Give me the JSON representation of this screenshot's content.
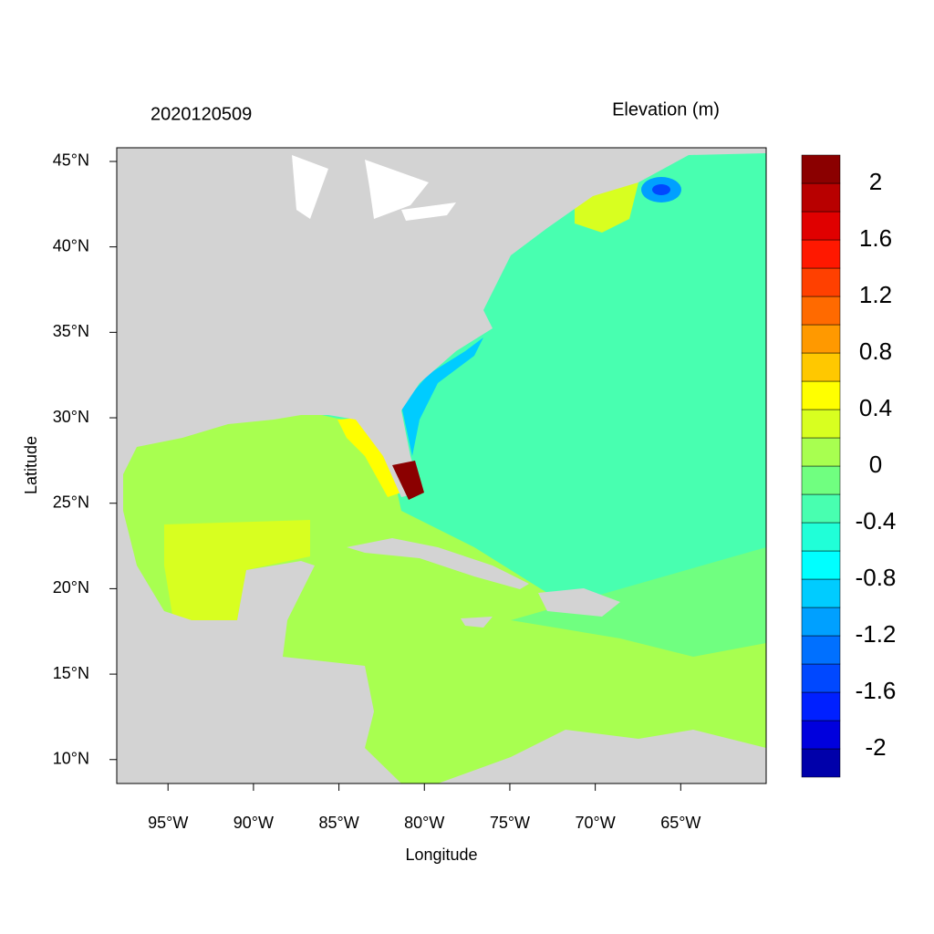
{
  "chart_data": {
    "type": "map",
    "title": "2020120509",
    "legend_title": "Elevation (m)",
    "xlabel": "Longitude",
    "ylabel": "Latitude",
    "xlim": [
      -98,
      -60
    ],
    "ylim": [
      8.6,
      45.8
    ],
    "xticks": [
      {
        "value": -95,
        "label": "95°W"
      },
      {
        "value": -90,
        "label": "90°W"
      },
      {
        "value": -85,
        "label": "85°W"
      },
      {
        "value": -80,
        "label": "80°W"
      },
      {
        "value": -75,
        "label": "75°W"
      },
      {
        "value": -70,
        "label": "70°W"
      },
      {
        "value": -65,
        "label": "65°W"
      }
    ],
    "yticks": [
      {
        "value": 10,
        "label": "10°N"
      },
      {
        "value": 15,
        "label": "15°N"
      },
      {
        "value": 20,
        "label": "20°N"
      },
      {
        "value": 25,
        "label": "25°N"
      },
      {
        "value": 30,
        "label": "30°N"
      },
      {
        "value": 35,
        "label": "35°N"
      },
      {
        "value": 40,
        "label": "40°N"
      },
      {
        "value": 45,
        "label": "45°N"
      }
    ],
    "colorbar": {
      "levels": [
        -2.2,
        -2,
        -1.8,
        -1.6,
        -1.4,
        -1.2,
        -1,
        -0.8,
        -0.6,
        -0.4,
        -0.2,
        0,
        0.2,
        0.4,
        0.6,
        0.8,
        1,
        1.2,
        1.4,
        1.6,
        1.8,
        2,
        2.2
      ],
      "colors": [
        "#0000aa",
        "#0000dd",
        "#0020ff",
        "#0048ff",
        "#0070ff",
        "#00a0ff",
        "#00ccff",
        "#00ffff",
        "#20ffd8",
        "#48ffb0",
        "#70ff80",
        "#a8ff50",
        "#d8ff20",
        "#ffff00",
        "#ffc800",
        "#ff9900",
        "#ff6a00",
        "#ff4000",
        "#ff1800",
        "#e00000",
        "#b80000",
        "#8b0000"
      ],
      "ticks": [
        -2,
        -1.6,
        -1.2,
        -0.8,
        -0.4,
        0,
        0.4,
        0.8,
        1.2,
        1.6,
        2
      ]
    }
  }
}
